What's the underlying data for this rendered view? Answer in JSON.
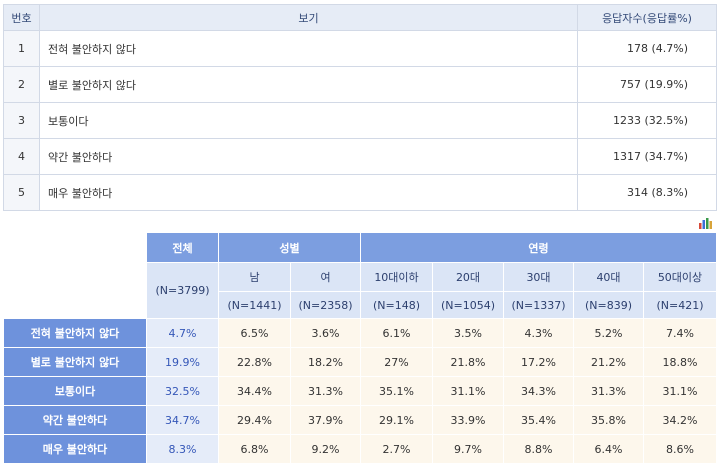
{
  "top": {
    "headers": {
      "num": "번호",
      "option": "보기",
      "count": "응답자수(응답률%)"
    },
    "rows": [
      {
        "num": "1",
        "option": "전혀 불안하지 않다",
        "count": "178 (4.7%)"
      },
      {
        "num": "2",
        "option": "별로 불안하지 않다",
        "count": "757 (19.9%)"
      },
      {
        "num": "3",
        "option": "보통이다",
        "count": "1233 (32.5%)"
      },
      {
        "num": "4",
        "option": "약간 불안하다",
        "count": "1317 (34.7%)"
      },
      {
        "num": "5",
        "option": "매우 불안하다",
        "count": "314 (8.3%)"
      }
    ]
  },
  "chart_icon": "bar-chart-icon",
  "cross": {
    "total_label": "전체",
    "total_n": "(N=3799)",
    "gender_label": "성별",
    "age_label": "연령",
    "subgroups": [
      {
        "label": "남",
        "n": "(N=1441)"
      },
      {
        "label": "여",
        "n": "(N=2358)"
      },
      {
        "label": "10대이하",
        "n": "(N=148)"
      },
      {
        "label": "20대",
        "n": "(N=1054)"
      },
      {
        "label": "30대",
        "n": "(N=1337)"
      },
      {
        "label": "40대",
        "n": "(N=839)"
      },
      {
        "label": "50대이상",
        "n": "(N=421)"
      }
    ],
    "rows": [
      {
        "label": "전혀 불안하지 않다",
        "total": "4.7%",
        "values": [
          "6.5%",
          "3.6%",
          "6.1%",
          "3.5%",
          "4.3%",
          "5.2%",
          "7.4%"
        ]
      },
      {
        "label": "별로 불안하지 않다",
        "total": "19.9%",
        "values": [
          "22.8%",
          "18.2%",
          "27%",
          "21.8%",
          "17.2%",
          "21.2%",
          "18.8%"
        ]
      },
      {
        "label": "보통이다",
        "total": "32.5%",
        "values": [
          "34.4%",
          "31.3%",
          "35.1%",
          "31.1%",
          "34.3%",
          "31.3%",
          "31.1%"
        ]
      },
      {
        "label": "약간 불안하다",
        "total": "34.7%",
        "values": [
          "29.4%",
          "37.9%",
          "29.1%",
          "33.9%",
          "35.4%",
          "35.8%",
          "34.2%"
        ]
      },
      {
        "label": "매우 불안하다",
        "total": "8.3%",
        "values": [
          "6.8%",
          "9.2%",
          "2.7%",
          "9.7%",
          "8.8%",
          "6.4%",
          "8.6%"
        ]
      }
    ]
  },
  "colors": {
    "header_blue": "#7c9ee0",
    "row_label_blue": "#6e92dc",
    "sub_header": "#dbe5f6",
    "total_cell": "#e5ecf9",
    "value_cell": "#fdf7ec",
    "top_header": "#e6ecf6"
  }
}
